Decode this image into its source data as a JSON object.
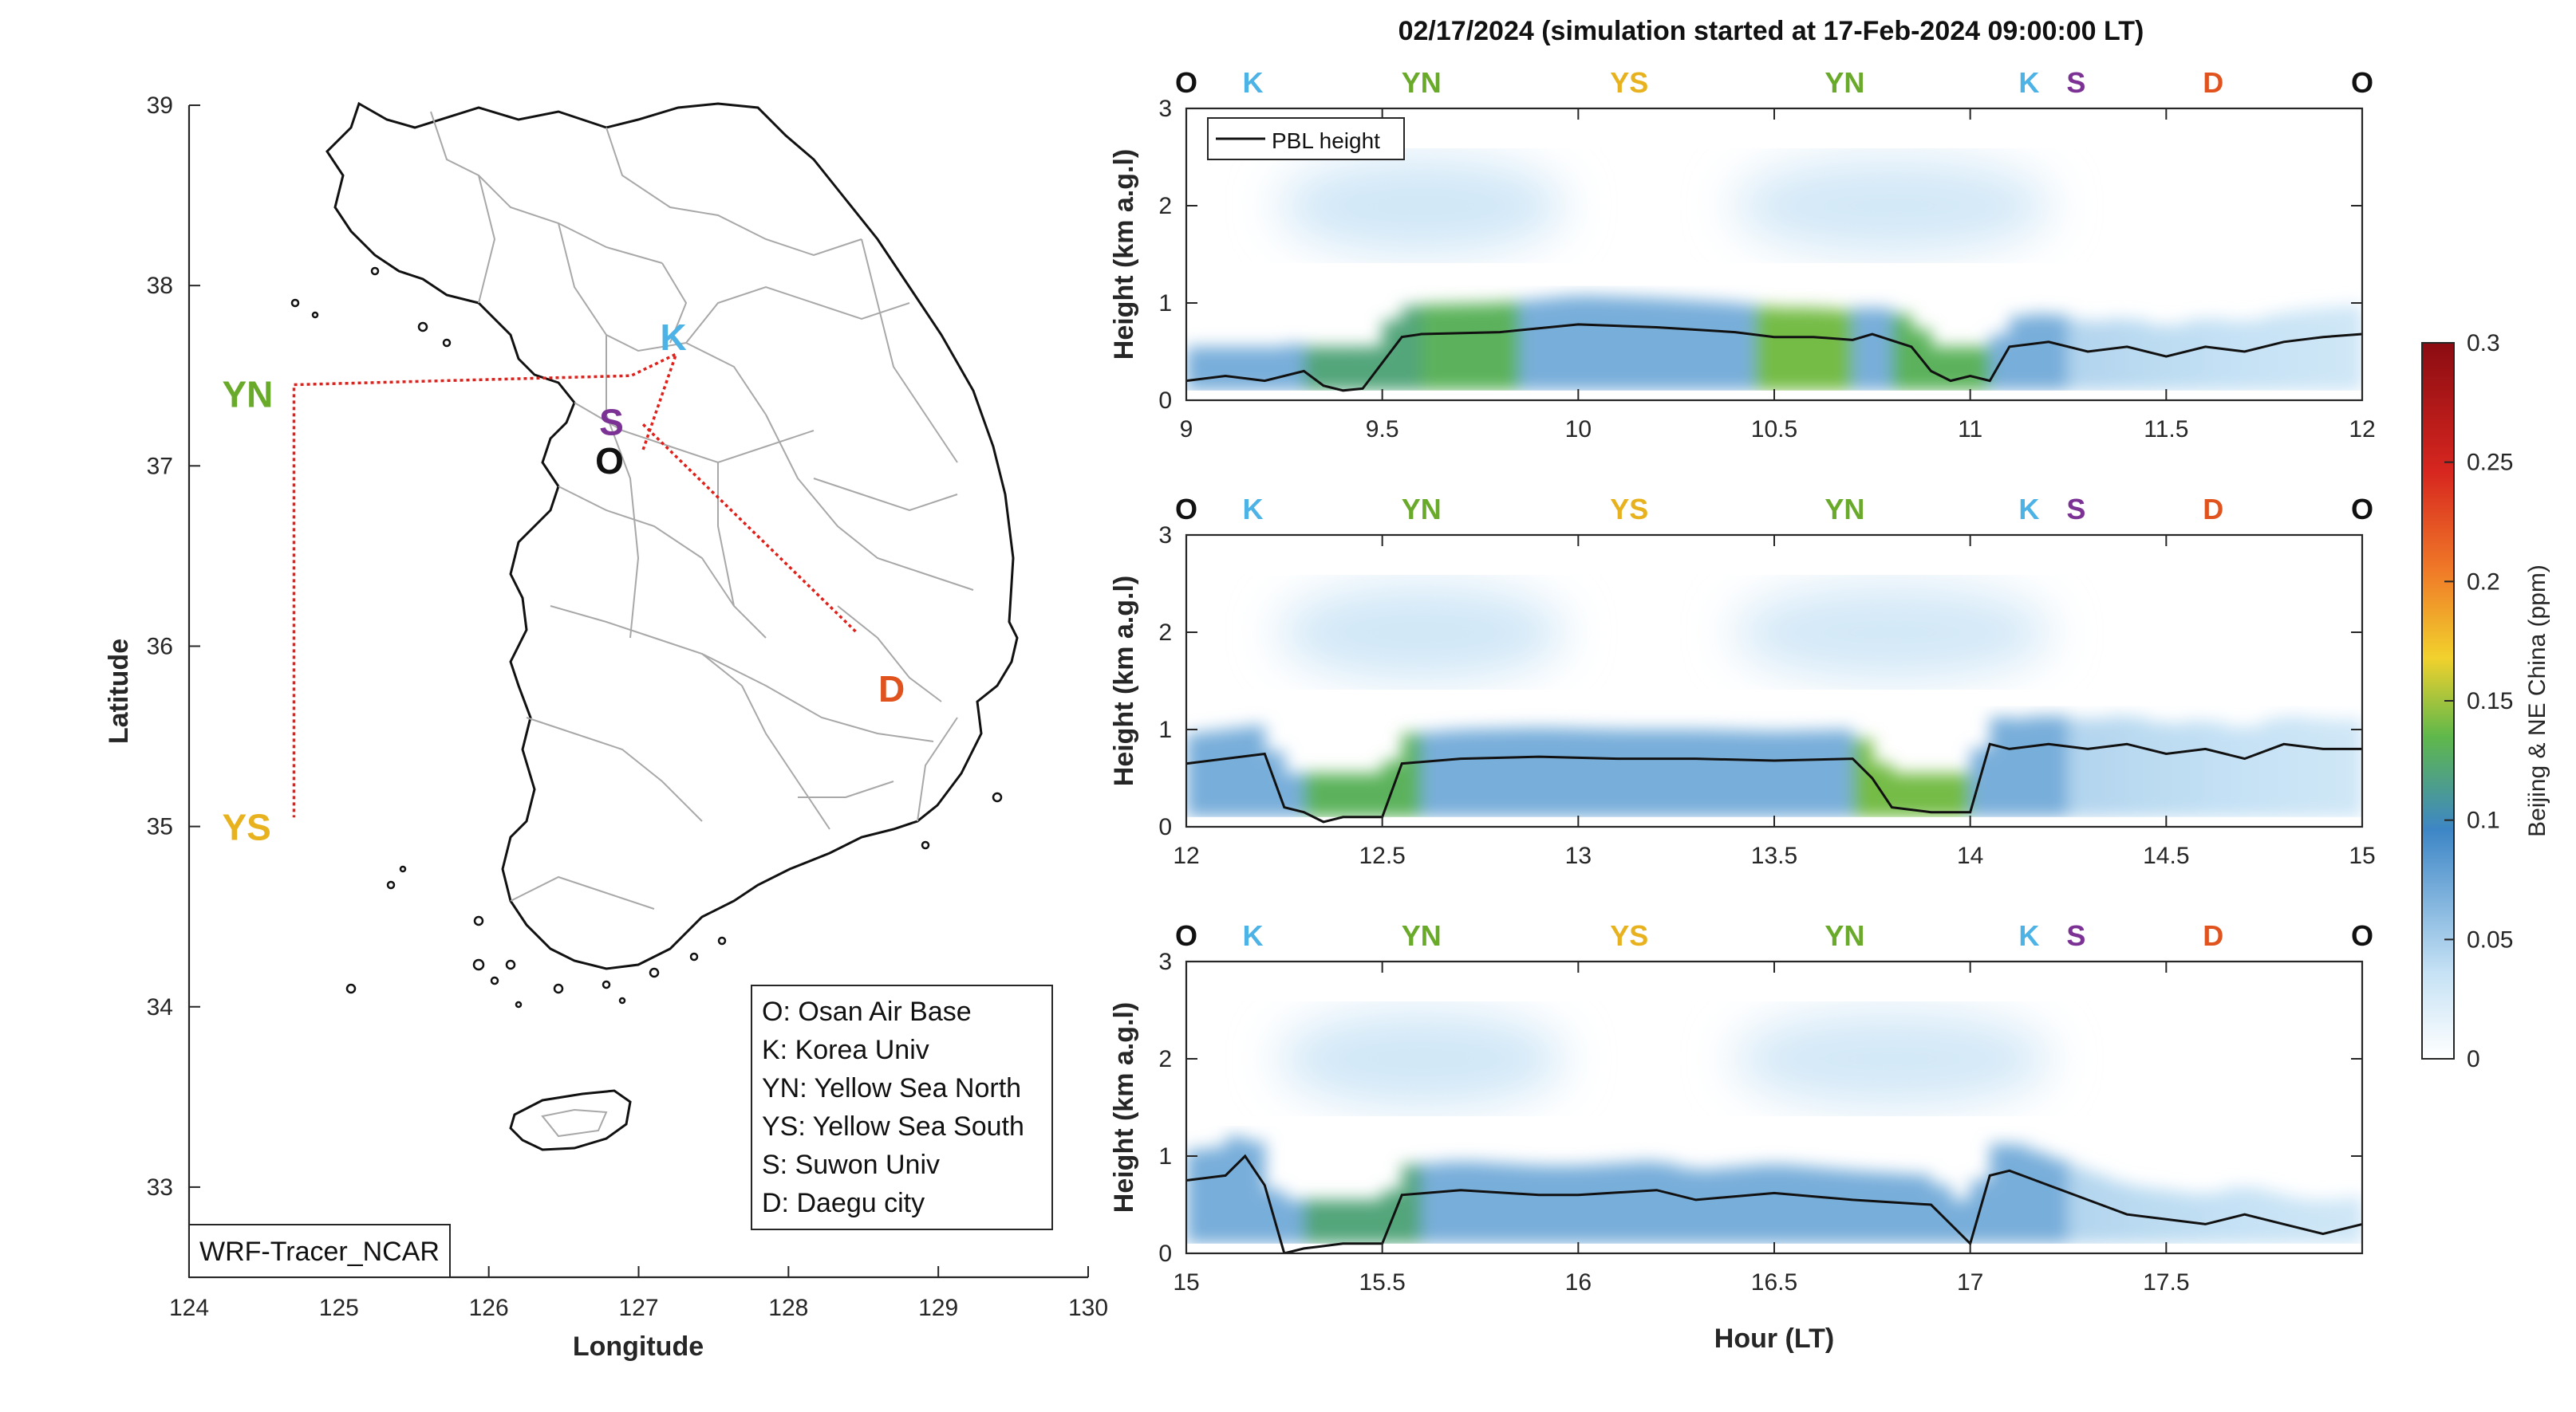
{
  "figure_title": "02/17/2024 (simulation started at 17-Feb-2024 09:00:00 LT)",
  "colors": {
    "K": "#4db3e6",
    "YN": "#6aaa2a",
    "YS": "#e8b21e",
    "S": "#7b3294",
    "D": "#e0531f",
    "O": "#111111",
    "route": "#e0201a",
    "pbl": "#111111"
  },
  "chart_data": [
    {
      "type": "map",
      "xlabel": "Longitude",
      "ylabel": "Latitude",
      "xlim": [
        124,
        130
      ],
      "ylim": [
        32.5,
        39
      ],
      "xticks": [
        124,
        125,
        126,
        127,
        128,
        129,
        130
      ],
      "yticks": [
        33,
        34,
        35,
        36,
        37,
        38,
        39
      ],
      "grid": false,
      "sites": [
        {
          "code": "YN",
          "lon": 124.7,
          "lat": 37.45
        },
        {
          "code": "YS",
          "lon": 124.7,
          "lat": 35.05
        },
        {
          "code": "K",
          "lon": 127.25,
          "lat": 37.62
        },
        {
          "code": "S",
          "lon": 126.95,
          "lat": 37.37
        },
        {
          "code": "O",
          "lon": 127.03,
          "lat": 37.09
        },
        {
          "code": "D",
          "lon": 128.6,
          "lat": 35.87
        }
      ],
      "route_lon": [
        127.03,
        127.25,
        126.95,
        124.7,
        124.7
      ],
      "route_lat": [
        37.09,
        37.62,
        37.5,
        37.45,
        35.05
      ],
      "route_lon_2": [
        127.03,
        128.45
      ],
      "route_lat_2": [
        37.23,
        36.08
      ],
      "legend": [
        "O: Osan Air Base",
        "K: Korea Univ",
        "YN: Yellow Sea North",
        "YS: Yellow Sea South",
        "S: Suwon Univ",
        "D: Daegu city"
      ],
      "annotation": "WRF-Tracer_NCAR"
    },
    {
      "type": "heatmap",
      "xlabel": "",
      "ylabel": "Height (km a.g.l)",
      "xlim": [
        9,
        12
      ],
      "ylim": [
        0,
        3
      ],
      "xticks": [
        9,
        9.5,
        10,
        10.5,
        11,
        11.5,
        12
      ],
      "yticks": [
        0,
        1,
        2,
        3
      ],
      "legend": "PBL height",
      "legend_position": "top-left",
      "top_labels": [
        {
          "code": "O",
          "x": 9.0
        },
        {
          "code": "K",
          "x": 9.17
        },
        {
          "code": "YN",
          "x": 9.6
        },
        {
          "code": "YS",
          "x": 10.13
        },
        {
          "code": "YN",
          "x": 10.68
        },
        {
          "code": "K",
          "x": 11.15
        },
        {
          "code": "S",
          "x": 11.27
        },
        {
          "code": "D",
          "x": 11.62
        },
        {
          "code": "O",
          "x": 12.0
        }
      ],
      "pbl_height": {
        "x": [
          9.0,
          9.1,
          9.2,
          9.3,
          9.35,
          9.4,
          9.45,
          9.55,
          9.6,
          9.8,
          10.0,
          10.2,
          10.4,
          10.5,
          10.6,
          10.7,
          10.75,
          10.85,
          10.9,
          10.95,
          11.0,
          11.05,
          11.1,
          11.2,
          11.3,
          11.4,
          11.5,
          11.6,
          11.7,
          11.8,
          11.9,
          12.0
        ],
        "y": [
          0.2,
          0.25,
          0.2,
          0.3,
          0.15,
          0.1,
          0.12,
          0.65,
          0.68,
          0.7,
          0.78,
          0.75,
          0.7,
          0.65,
          0.65,
          0.62,
          0.68,
          0.55,
          0.3,
          0.2,
          0.25,
          0.2,
          0.55,
          0.6,
          0.5,
          0.55,
          0.45,
          0.55,
          0.5,
          0.6,
          0.65,
          0.68
        ]
      },
      "plume_segments": [
        {
          "x0": 9.3,
          "x1": 9.6,
          "level": 0.12
        },
        {
          "x0": 9.6,
          "x1": 9.85,
          "level": 0.13
        },
        {
          "x0": 10.45,
          "x1": 10.7,
          "level": 0.14
        },
        {
          "x0": 10.8,
          "x1": 11.05,
          "level": 0.13
        }
      ]
    },
    {
      "type": "heatmap",
      "xlabel": "",
      "ylabel": "Height (km a.g.l)",
      "xlim": [
        12,
        15
      ],
      "ylim": [
        0,
        3
      ],
      "xticks": [
        12,
        12.5,
        13,
        13.5,
        14,
        14.5,
        15
      ],
      "yticks": [
        0,
        1,
        2,
        3
      ],
      "top_labels": [
        {
          "code": "O",
          "x": 12.0
        },
        {
          "code": "K",
          "x": 12.17
        },
        {
          "code": "YN",
          "x": 12.6
        },
        {
          "code": "YS",
          "x": 13.13
        },
        {
          "code": "YN",
          "x": 13.68
        },
        {
          "code": "K",
          "x": 14.15
        },
        {
          "code": "S",
          "x": 14.27
        },
        {
          "code": "D",
          "x": 14.62
        },
        {
          "code": "O",
          "x": 15.0
        }
      ],
      "pbl_height": {
        "x": [
          12.0,
          12.1,
          12.2,
          12.25,
          12.3,
          12.35,
          12.4,
          12.5,
          12.55,
          12.7,
          12.9,
          13.1,
          13.3,
          13.5,
          13.7,
          13.75,
          13.8,
          13.9,
          14.0,
          14.05,
          14.1,
          14.2,
          14.3,
          14.4,
          14.5,
          14.6,
          14.7,
          14.8,
          14.9,
          15.0
        ],
        "y": [
          0.65,
          0.7,
          0.75,
          0.2,
          0.15,
          0.05,
          0.1,
          0.1,
          0.65,
          0.7,
          0.72,
          0.7,
          0.7,
          0.68,
          0.7,
          0.5,
          0.2,
          0.15,
          0.15,
          0.85,
          0.8,
          0.85,
          0.8,
          0.85,
          0.75,
          0.8,
          0.7,
          0.85,
          0.8,
          0.8
        ]
      },
      "plume_segments": [
        {
          "x0": 12.3,
          "x1": 12.6,
          "level": 0.13
        },
        {
          "x0": 13.7,
          "x1": 14.0,
          "level": 0.14
        }
      ]
    },
    {
      "type": "heatmap",
      "xlabel": "Hour (LT)",
      "ylabel": "Height (km a.g.l)",
      "xlim": [
        15,
        18
      ],
      "ylim": [
        0,
        3
      ],
      "xticks": [
        15,
        15.5,
        16,
        16.5,
        17,
        17.5
      ],
      "yticks": [
        0,
        1,
        2,
        3
      ],
      "top_labels": [
        {
          "code": "O",
          "x": 15.0
        },
        {
          "code": "K",
          "x": 15.17
        },
        {
          "code": "YN",
          "x": 15.6
        },
        {
          "code": "YS",
          "x": 16.13
        },
        {
          "code": "YN",
          "x": 16.68
        },
        {
          "code": "K",
          "x": 17.15
        },
        {
          "code": "S",
          "x": 17.27
        },
        {
          "code": "D",
          "x": 17.62
        },
        {
          "code": "O",
          "x": 18.0
        }
      ],
      "pbl_height": {
        "x": [
          15.0,
          15.1,
          15.15,
          15.2,
          15.25,
          15.3,
          15.4,
          15.5,
          15.55,
          15.7,
          15.9,
          16.0,
          16.2,
          16.3,
          16.5,
          16.7,
          16.9,
          17.0,
          17.05,
          17.1,
          17.2,
          17.3,
          17.4,
          17.5,
          17.6,
          17.7,
          17.8,
          17.9,
          18.0
        ],
        "y": [
          0.75,
          0.8,
          1.0,
          0.7,
          0.0,
          0.05,
          0.1,
          0.1,
          0.6,
          0.65,
          0.6,
          0.6,
          0.65,
          0.55,
          0.62,
          0.55,
          0.5,
          0.1,
          0.8,
          0.85,
          0.7,
          0.55,
          0.4,
          0.35,
          0.3,
          0.4,
          0.3,
          0.2,
          0.3
        ]
      },
      "plume_segments": [
        {
          "x0": 15.3,
          "x1": 15.6,
          "level": 0.12
        }
      ]
    },
    {
      "type": "colorbar",
      "label": "Beijing & NE China (ppm)",
      "range": [
        0,
        0.3
      ],
      "ticks": [
        "0",
        "0.05",
        "0.1",
        "0.15",
        "0.2",
        "0.25",
        "0.3"
      ],
      "colors": [
        "#ffffff",
        "#c6e2f5",
        "#3d86c6",
        "#5fb84b",
        "#f1d12d",
        "#f07b28",
        "#d7261f",
        "#8b0c12"
      ]
    }
  ]
}
